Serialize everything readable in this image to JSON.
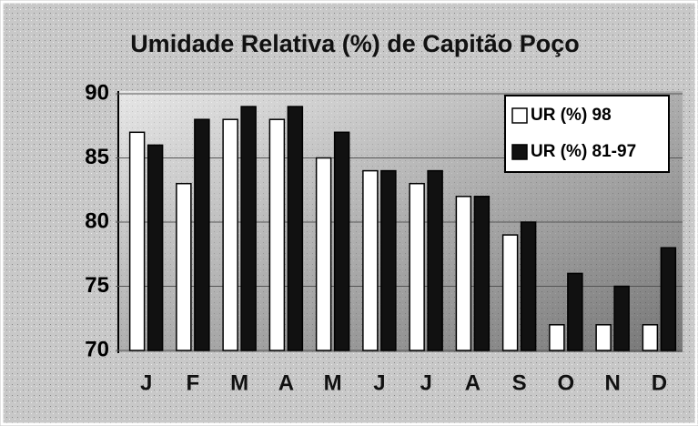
{
  "chart_data": {
    "type": "bar",
    "title": "Umidade Relativa (%) de Capitão Poço",
    "categories": [
      "J",
      "F",
      "M",
      "A",
      "M",
      "J",
      "J",
      "A",
      "S",
      "O",
      "N",
      "D"
    ],
    "series": [
      {
        "name": "UR (%) 98",
        "color": "#ffffff",
        "values": [
          87,
          83,
          88,
          88,
          85,
          84,
          83,
          82,
          79,
          72,
          72,
          72
        ]
      },
      {
        "name": "UR (%) 81-97",
        "color": "#111111",
        "values": [
          86,
          88,
          89,
          89,
          87,
          84,
          84,
          82,
          80,
          76,
          75,
          78
        ]
      }
    ],
    "ylim": [
      70,
      90
    ],
    "yticks": [
      70,
      75,
      80,
      85,
      90
    ],
    "grid": true,
    "legend": "top-right"
  }
}
